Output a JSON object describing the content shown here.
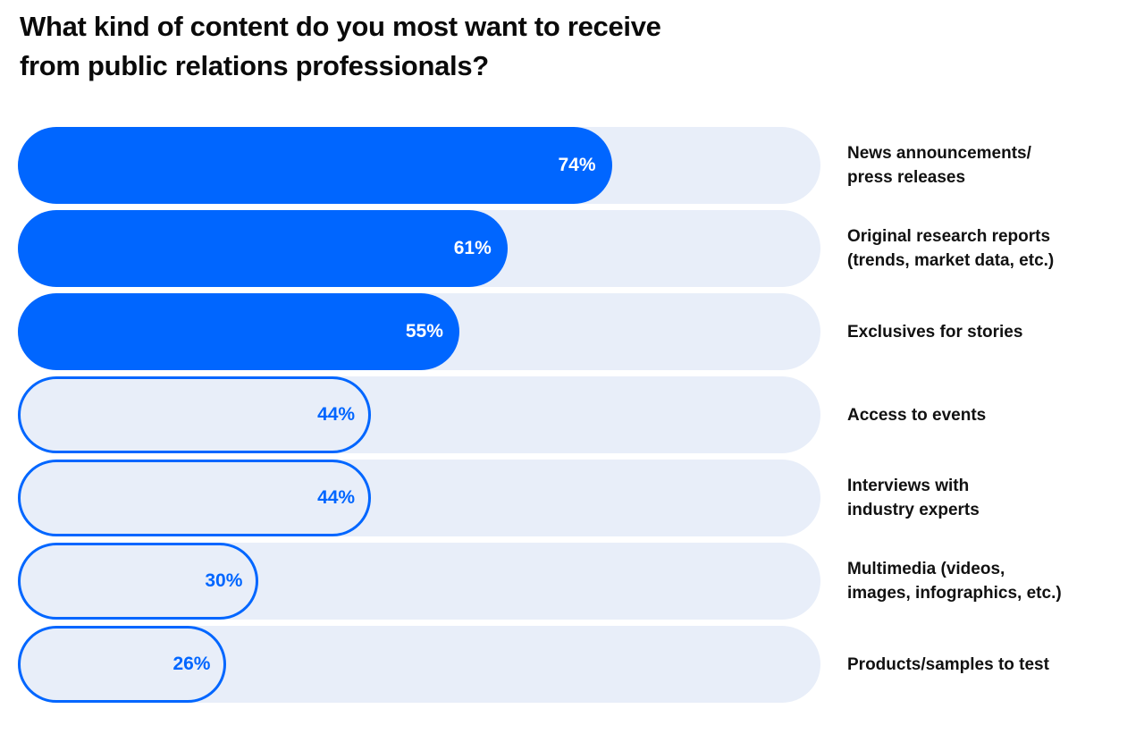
{
  "chart_data": {
    "type": "bar",
    "orientation": "horizontal",
    "title": "What kind of content do you most want to receive\nfrom public relations professionals?",
    "categories": [
      "News announcements/\npress releases",
      "Original research reports\n(trends, market data, etc.)",
      "Exclusives for stories",
      "Access to events",
      "Interviews with\nindustry experts",
      "Multimedia (videos,\nimages, infographics, etc.)",
      "Products/samples to test"
    ],
    "values": [
      74,
      61,
      55,
      44,
      44,
      30,
      26
    ],
    "value_labels": [
      "74%",
      "61%",
      "55%",
      "44%",
      "44%",
      "30%",
      "26%"
    ],
    "styles": [
      "filled",
      "filled",
      "filled",
      "outline",
      "outline",
      "outline",
      "outline"
    ],
    "xlim": [
      0,
      100
    ],
    "grid": false,
    "legend": "none",
    "colors": {
      "bar": "#0066FF",
      "track": "#E8EEF9",
      "text": "#111111"
    }
  }
}
